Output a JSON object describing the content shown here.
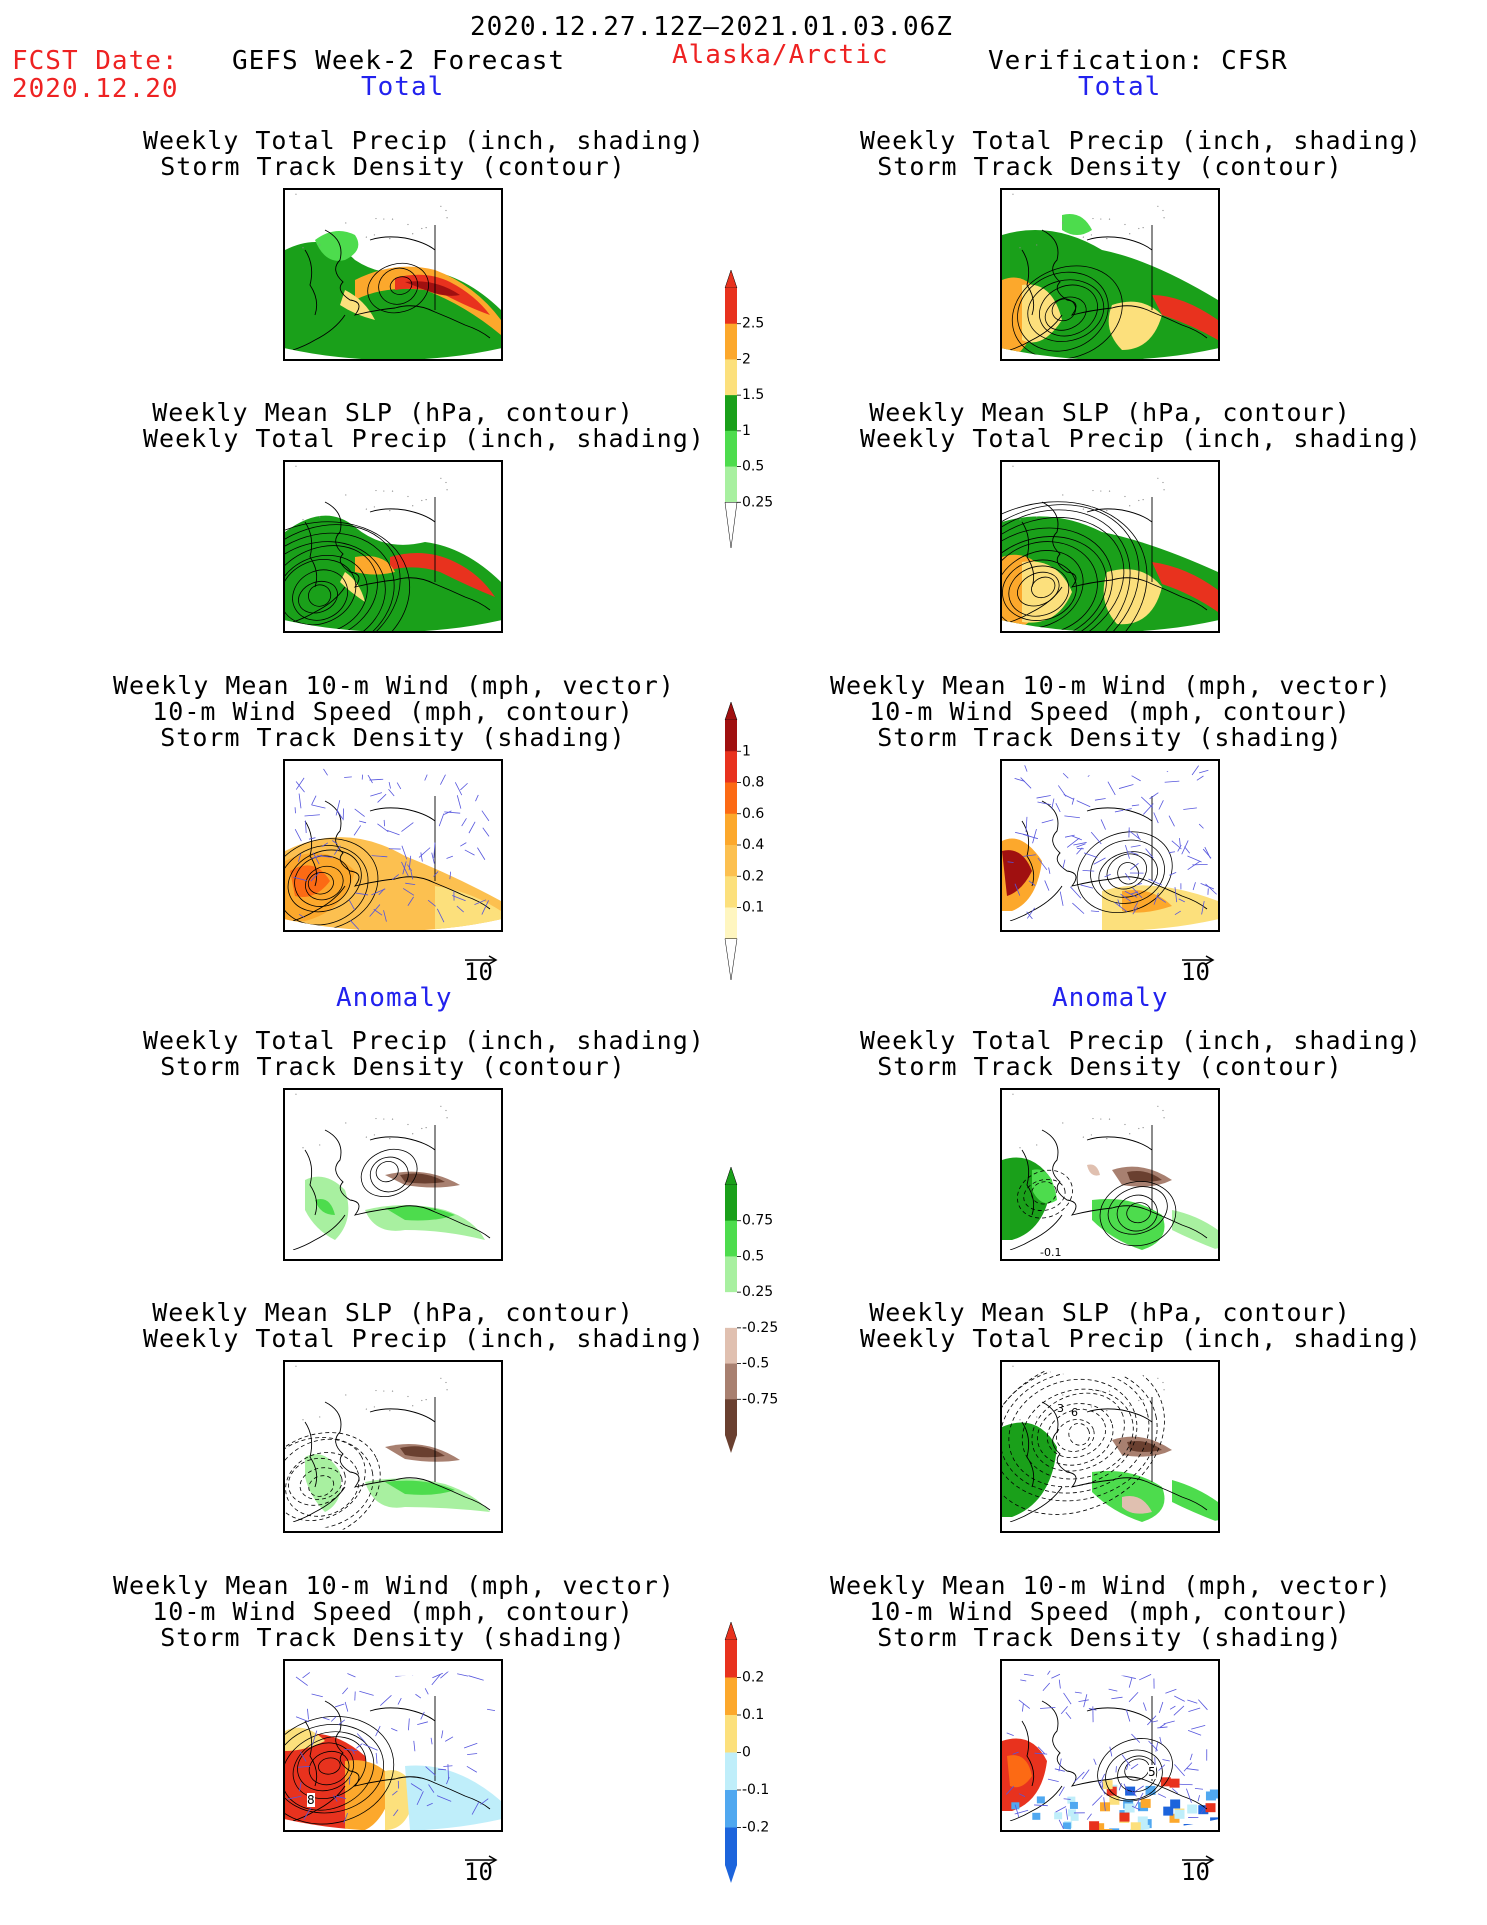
{
  "header": {
    "period": "2020.12.27.12Z–2021.01.03.06Z",
    "fcst_label": "FCST Date:",
    "fcst_date": "2020.12.20",
    "left_title": "GEFS Week-2 Forecast",
    "region": "Alaska/Arctic",
    "right_title": "Verification: CFSR"
  },
  "sections": {
    "total": "Total",
    "anomaly": "Anomaly"
  },
  "panel_titles": {
    "precip_storm": [
      "Weekly Total Precip (inch, shading)",
      "Storm Track Density (contour)"
    ],
    "slp_precip": [
      "Weekly Mean SLP (hPa, contour)",
      "Weekly Total Precip (inch, shading)"
    ],
    "wind_storm": [
      "Weekly Mean 10-m Wind (mph, vector)",
      "10-m Wind Speed (mph, contour)",
      "Storm Track Density (shading)"
    ]
  },
  "vector_ref": "10",
  "colors": {
    "green_dark": "#1aa01a",
    "green": "#4ddc4d",
    "green_light": "#a8f0a0",
    "yellow": "#fce07c",
    "orange": "#fca82c",
    "red": "#e8321e",
    "darkred": "#a01010",
    "brown_light": "#e0c0b0",
    "brown": "#a88070",
    "brown_dark": "#6a4030",
    "cyan_light": "#bfeefa",
    "blue_mid": "#50a8f0",
    "blue_dark": "#1c64dc",
    "vector": "#5555dd"
  },
  "colorbars": {
    "precip_total": {
      "labels": [
        "2.5",
        "2",
        "1.5",
        "1",
        "0.5",
        "0.25"
      ],
      "colors": [
        "#e8321e",
        "#fca82c",
        "#fce07c",
        "#1aa01a",
        "#4ddc4d",
        "#a8f0a0",
        "#ffffff"
      ]
    },
    "storm_total": {
      "labels": [
        "1",
        "0.8",
        "0.6",
        "0.4",
        "0.2",
        "0.1"
      ],
      "colors": [
        "#a01010",
        "#e8321e",
        "#fc6a14",
        "#fca82c",
        "#fcc050",
        "#fce07c",
        "#fff6c0",
        "#ffffff"
      ]
    },
    "precip_anom": {
      "labels": [
        "0.75",
        "0.5",
        "0.25",
        "-0.25",
        "-0.5",
        "-0.75"
      ],
      "colors": [
        "#1aa01a",
        "#4ddc4d",
        "#a8f0a0",
        "#ffffff",
        "#e0c0b0",
        "#a88070",
        "#6a4030"
      ]
    },
    "storm_anom": {
      "labels": [
        "0.2",
        "0.1",
        "0",
        "-0.1",
        "-0.2"
      ],
      "colors": [
        "#e8321e",
        "#fca82c",
        "#fce07c",
        "#bfeefa",
        "#50a8f0",
        "#1c64dc"
      ]
    }
  },
  "map_labels": {
    "anom_precip_right": "-0.1",
    "anom_slp_right_a": "3",
    "anom_slp_right_b": "6",
    "anom_wind_left": "8",
    "anom_wind_right": "5"
  }
}
